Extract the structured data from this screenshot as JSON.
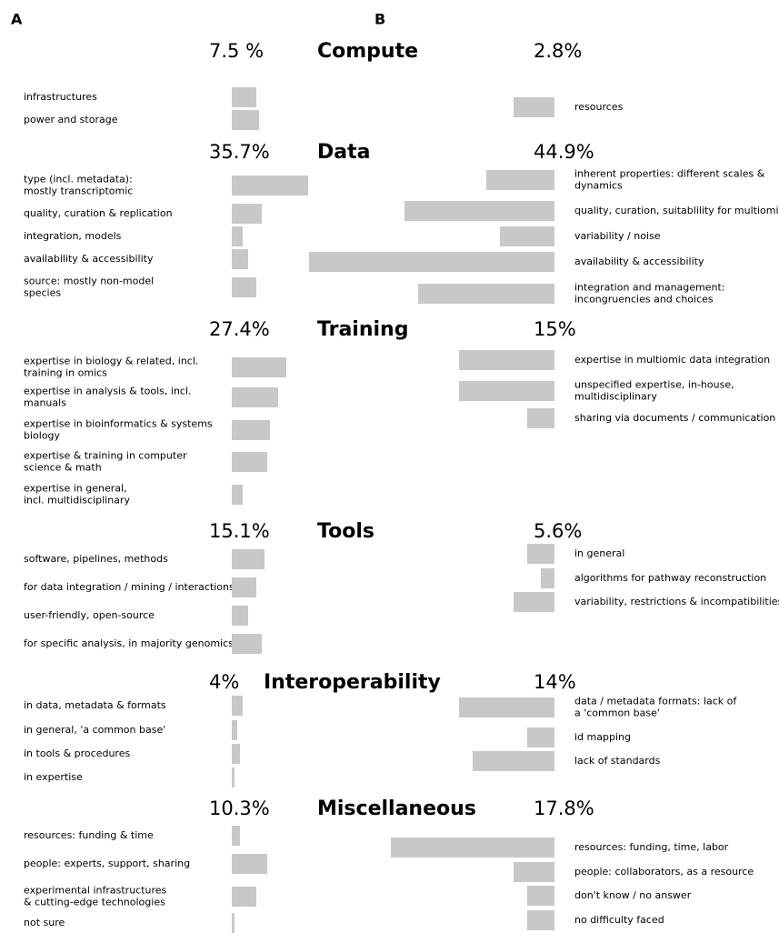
{
  "chart_data": {
    "type": "bar",
    "panel_labels": [
      "A",
      "B"
    ],
    "xlim": [
      0,
      100
    ],
    "color": "#c8c8c8",
    "sections": [
      {
        "title": "Compute",
        "totals": [
          7.5,
          2.8
        ],
        "total_labels": [
          "7.5 %",
          "2.8%"
        ],
        "series": [
          {
            "categories": [
              "infrastructures",
              "power and storage"
            ],
            "values": [
              9,
              10
            ]
          },
          {
            "categories": [
              "resources"
            ],
            "values": [
              15
            ]
          }
        ]
      },
      {
        "title": "Data",
        "totals": [
          35.7,
          44.9
        ],
        "total_labels": [
          "35.7%",
          "44.9%"
        ],
        "series": [
          {
            "categories": [
              "type (incl. metadata):\nmostly transcriptomic",
              "quality, curation & replication",
              "integration, models",
              "availability & accessibility",
              "source: mostly non-model\nspecies"
            ],
            "values": [
              28,
              11,
              4,
              6,
              9
            ]
          },
          {
            "categories": [
              "inherent properties: different scales &\ndynamics",
              "quality, curation, suitablility for multiomics",
              "variability / noise",
              "availability & accessibility",
              "integration and management:\nincongruencies and choices"
            ],
            "values": [
              25,
              55,
              20,
              90,
              50
            ]
          }
        ]
      },
      {
        "title": "Training",
        "totals": [
          27.4,
          15
        ],
        "total_labels": [
          "27.4%",
          "15%"
        ],
        "series": [
          {
            "categories": [
              "expertise in biology & related, incl.\ntraining in omics",
              "expertise in analysis & tools, incl.\nmanuals",
              "expertise in bioinformatics & systems\nbiology",
              "expertise & training in computer\nscience & math",
              "expertise in general,\nincl. multidisciplinary"
            ],
            "values": [
              20,
              17,
              14,
              13,
              4
            ]
          },
          {
            "categories": [
              "expertise in multiomic data integration",
              "unspecified expertise, in-house,\nmultidisciplinary",
              "sharing via documents / communication"
            ],
            "values": [
              35,
              35,
              10
            ]
          }
        ]
      },
      {
        "title": "Tools",
        "totals": [
          15.1,
          5.6
        ],
        "total_labels": [
          "15.1%",
          "5.6%"
        ],
        "series": [
          {
            "categories": [
              "software, pipelines, methods",
              "for data integration / mining / interactions",
              "user-friendly, open-source",
              "for specific analysis, in majority genomics"
            ],
            "values": [
              12,
              9,
              6,
              11
            ]
          },
          {
            "categories": [
              "in general",
              "algorithms for pathway reconstruction",
              "variability, restrictions & incompatibilities"
            ],
            "values": [
              10,
              5,
              15
            ]
          }
        ]
      },
      {
        "title": "Interoperability",
        "totals": [
          4,
          14
        ],
        "total_labels": [
          "4%",
          "14%"
        ],
        "series": [
          {
            "categories": [
              "in data, metadata & formats",
              "in general, 'a common base'",
              "in tools & procedures",
              "in expertise"
            ],
            "values": [
              4,
              2,
              3,
              1
            ]
          },
          {
            "categories": [
              "data / metadata formats:  lack of\na 'common base'",
              "id mapping",
              "lack of standards"
            ],
            "values": [
              35,
              10,
              30
            ]
          }
        ]
      },
      {
        "title": "Miscellaneous",
        "totals": [
          10.3,
          17.8
        ],
        "total_labels": [
          "10.3%",
          "17.8%"
        ],
        "series": [
          {
            "categories": [
              "resources: funding & time",
              "people: experts, support, sharing",
              "experimental infrastructures\n& cutting-edge technologies",
              "not sure"
            ],
            "values": [
              3,
              13,
              9,
              1
            ]
          },
          {
            "categories": [
              "resources: funding, time, labor",
              "people: collaborators, as a resource",
              "don't know / no answer",
              "no difficulty faced"
            ],
            "values": [
              60,
              15,
              10,
              10
            ]
          }
        ]
      }
    ]
  }
}
